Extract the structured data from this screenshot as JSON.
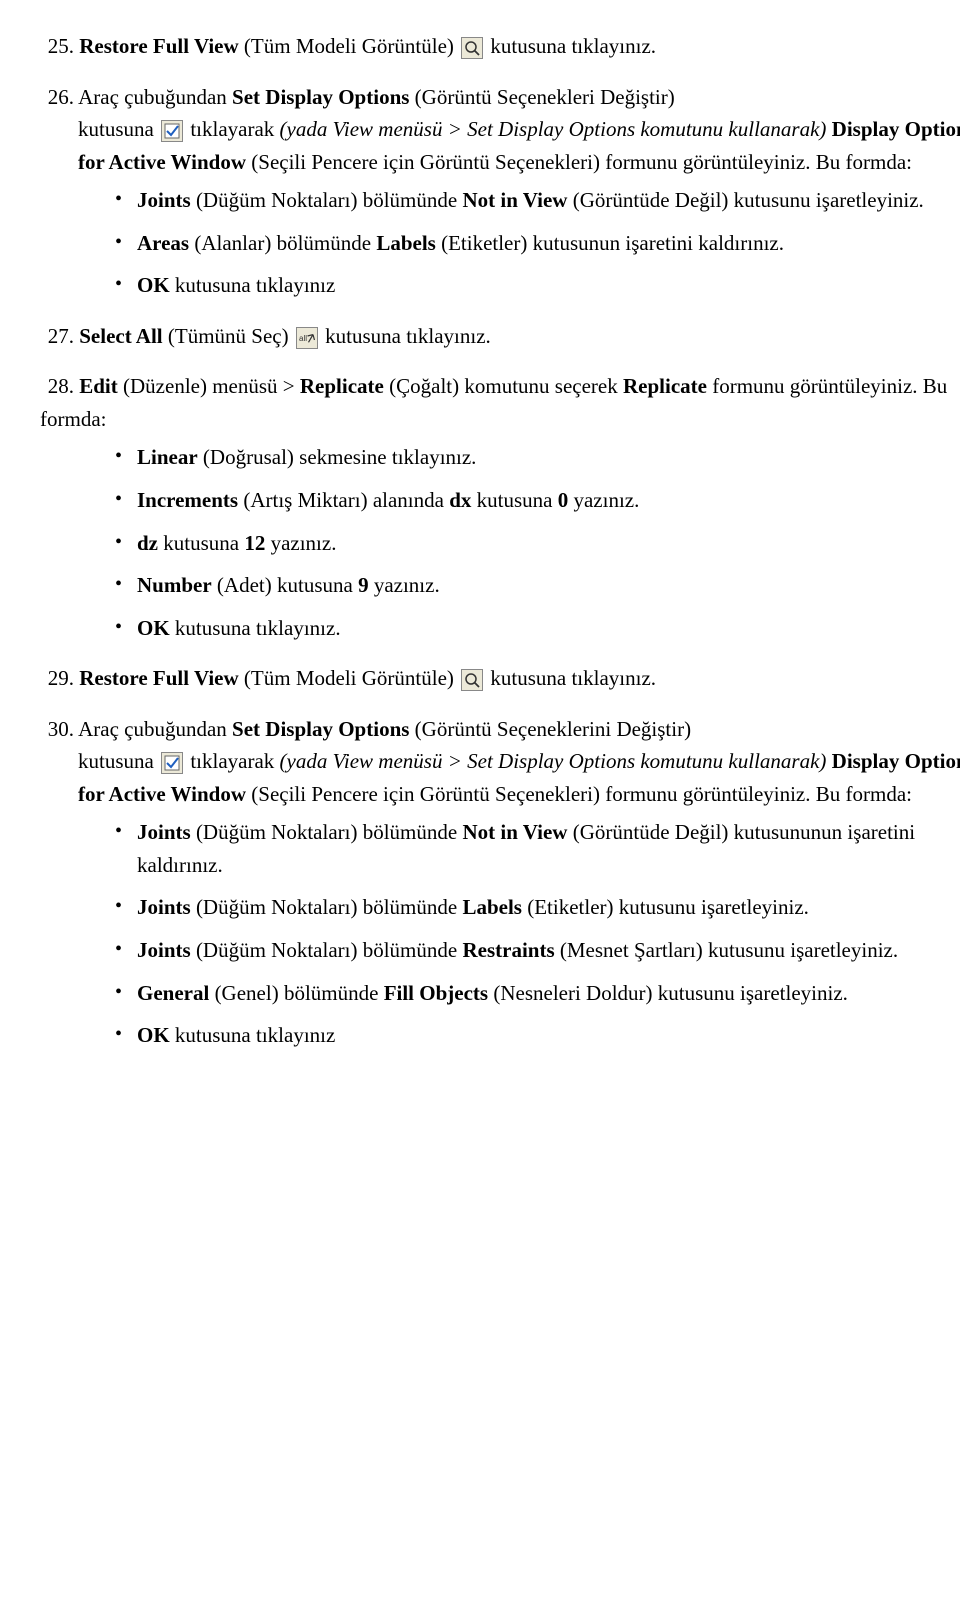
{
  "colors": {
    "text": "#000000",
    "background": "#ffffff",
    "icon_bg": "#ece9d8",
    "icon_border": "#888888",
    "icon_blue": "#1f5fbf",
    "icon_dark": "#333333"
  },
  "typography": {
    "font_family": "Times New Roman",
    "body_size_pt": 16,
    "line_height": 1.55
  },
  "items": [
    {
      "num": "25.",
      "pre_bold": "Restore Full View",
      "pre_plain": " (Tüm Modeli Görüntüle) ",
      "icon": "magnify",
      "post_plain": " kutusuna tıklayınız."
    },
    {
      "num": "26.",
      "line1_a": "Araç çubuğundan ",
      "line1_b": "Set Display Options",
      "line1_c": " (Görüntü Seçenekleri Değiştir)",
      "line2_a": "kutusuna ",
      "icon": "checkbox",
      "line2_b": " tıklayarak ",
      "line2_italic": "(yada View menüsü > Set Display Options komutunu kullanarak)",
      "line2_c": " ",
      "line2_d": "Display Options for Active Window",
      "line2_e": " (Seçili Pencere için Görüntü Seçenekleri) formunu görüntüleyiniz. Bu formda:",
      "bullets": [
        {
          "parts": [
            {
              "b": true,
              "t": "Joints"
            },
            {
              "t": " (Düğüm Noktaları) bölümünde "
            },
            {
              "b": true,
              "t": "Not in View"
            },
            {
              "t": " (Görüntüde Değil) kutusunu işaretleyiniz."
            }
          ]
        },
        {
          "parts": [
            {
              "b": true,
              "t": "Areas"
            },
            {
              "t": " (Alanlar) bölümünde "
            },
            {
              "b": true,
              "t": "Labels"
            },
            {
              "t": " (Etiketler) kutusunun işaretini kaldırınız."
            }
          ]
        },
        {
          "parts": [
            {
              "b": true,
              "t": "OK"
            },
            {
              "t": " kutusuna tıklayınız"
            }
          ]
        }
      ]
    },
    {
      "num": "27.",
      "pre_bold": "Select All",
      "pre_plain": " (Tümünü Seç) ",
      "icon": "selectall",
      "post_plain": " kutusuna tıklayınız."
    },
    {
      "num": "28.",
      "line1_parts": [
        {
          "b": true,
          "t": "Edit"
        },
        {
          "t": " (Düzenle) menüsü > "
        },
        {
          "b": true,
          "t": "Replicate"
        },
        {
          "t": " (Çoğalt) komutunu seçerek "
        },
        {
          "b": true,
          "t": "Replicate"
        },
        {
          "t": " formunu görüntüleyiniz. Bu formda:"
        }
      ],
      "bullets": [
        {
          "parts": [
            {
              "b": true,
              "t": "Linear"
            },
            {
              "t": " (Doğrusal) sekmesine tıklayınız."
            }
          ]
        },
        {
          "parts": [
            {
              "b": true,
              "t": "Increments"
            },
            {
              "t": " (Artış Miktarı) alanında "
            },
            {
              "b": true,
              "t": "dx"
            },
            {
              "t": " kutusuna "
            },
            {
              "b": true,
              "t": "0"
            },
            {
              "t": " yazınız."
            }
          ]
        },
        {
          "parts": [
            {
              "b": true,
              "t": "dz"
            },
            {
              "t": " kutusuna "
            },
            {
              "b": true,
              "t": "12"
            },
            {
              "t": " yazınız."
            }
          ]
        },
        {
          "parts": [
            {
              "b": true,
              "t": "Number"
            },
            {
              "t": " (Adet) kutusuna "
            },
            {
              "b": true,
              "t": "9"
            },
            {
              "t": " yazınız."
            }
          ]
        },
        {
          "parts": [
            {
              "b": true,
              "t": "OK"
            },
            {
              "t": " kutusuna tıklayınız."
            }
          ]
        }
      ]
    },
    {
      "num": "29.",
      "pre_bold": "Restore Full View",
      "pre_plain": " (Tüm Modeli Görüntüle) ",
      "icon": "magnify",
      "post_plain": " kutusuna tıklayınız."
    },
    {
      "num": "30.",
      "line1_a": "Araç çubuğundan ",
      "line1_b": "Set Display Options",
      "line1_c": " (Görüntü Seçeneklerini Değiştir)",
      "line2_a": "kutusuna ",
      "icon": "checkbox",
      "line2_b": " tıklayarak ",
      "line2_italic": "(yada View menüsü > Set Display Options komutunu kullanarak)",
      "line2_c": " ",
      "line2_d": "Display Options for Active Window",
      "line2_e": " (Seçili Pencere için Görüntü Seçenekleri) formunu görüntüleyiniz. Bu formda:",
      "bullets": [
        {
          "parts": [
            {
              "b": true,
              "t": "Joints"
            },
            {
              "t": " (Düğüm Noktaları) bölümünde "
            },
            {
              "b": true,
              "t": "Not in View"
            },
            {
              "t": " (Görüntüde Değil) kutusununun işaretini kaldırınız."
            }
          ]
        },
        {
          "parts": [
            {
              "b": true,
              "t": "Joints"
            },
            {
              "t": " (Düğüm Noktaları) bölümünde "
            },
            {
              "b": true,
              "t": "Labels"
            },
            {
              "t": " (Etiketler) kutusunu işaretleyiniz."
            }
          ]
        },
        {
          "parts": [
            {
              "b": true,
              "t": "Joints"
            },
            {
              "t": " (Düğüm Noktaları) bölümünde "
            },
            {
              "b": true,
              "t": "Restraints"
            },
            {
              "t": " (Mesnet Şartları) kutusunu işaretleyiniz."
            }
          ]
        },
        {
          "parts": [
            {
              "b": true,
              "t": "General"
            },
            {
              "t": " (Genel) bölümünde "
            },
            {
              "b": true,
              "t": "Fill Objects"
            },
            {
              "t": " (Nesneleri Doldur) kutusunu işaretleyiniz."
            }
          ]
        },
        {
          "parts": [
            {
              "b": true,
              "t": "OK"
            },
            {
              "t": " kutusuna tıklayınız"
            }
          ]
        }
      ]
    }
  ]
}
